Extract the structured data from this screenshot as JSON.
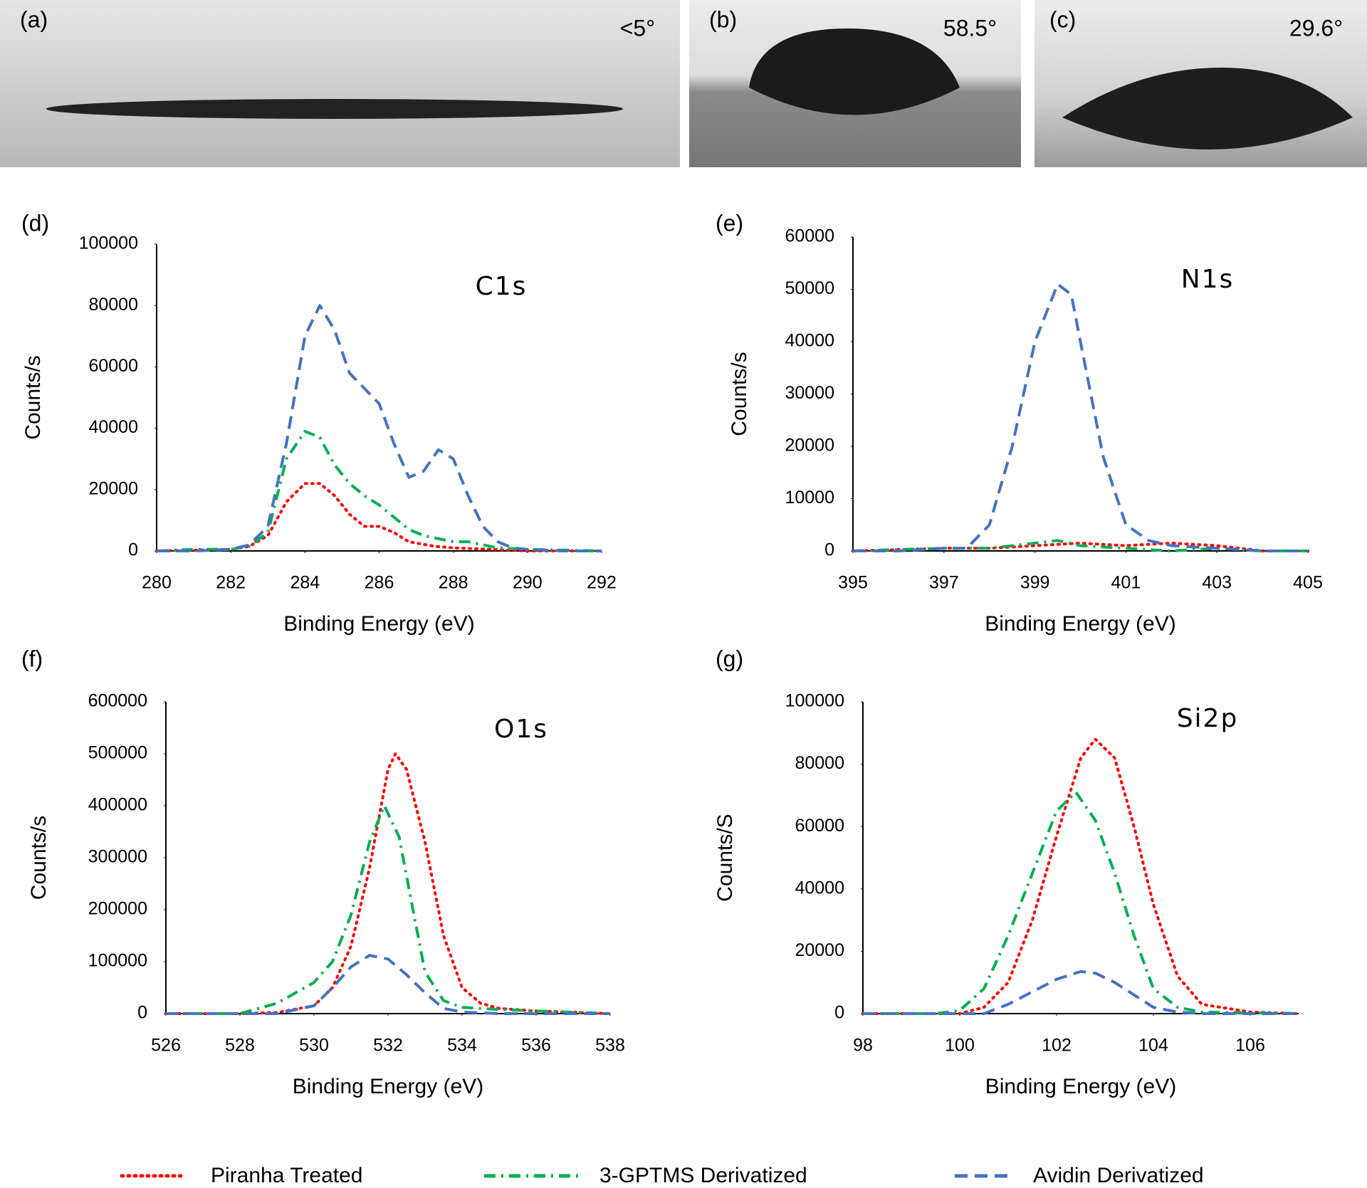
{
  "photos": [
    {
      "label": "(a)",
      "angle": "<5°"
    },
    {
      "label": "(b)",
      "angle": "58.5°"
    },
    {
      "label": "(c)",
      "angle": "29.6°"
    }
  ],
  "chart_data": [
    {
      "type": "line",
      "panel": "(d)",
      "annotation": "C1s",
      "x_label": "Binding Energy (eV)",
      "y_label": "Counts/s",
      "xlim": [
        280,
        292
      ],
      "xticks": [
        280,
        282,
        284,
        286,
        288,
        290,
        292
      ],
      "ylim": [
        0,
        100000
      ],
      "yticks": [
        0,
        20000,
        40000,
        60000,
        80000,
        100000
      ],
      "series": [
        {
          "name": "Piranha Treated",
          "color": "#ff0000",
          "style": "dotted",
          "x": [
            280,
            282,
            282.5,
            283,
            283.5,
            284,
            284.4,
            284.8,
            285.2,
            285.6,
            286,
            286.4,
            286.8,
            287.5,
            288,
            289,
            290,
            292
          ],
          "values": [
            0,
            500,
            1500,
            5000,
            16000,
            22000,
            22000,
            18000,
            12000,
            8000,
            8000,
            6000,
            3000,
            1500,
            1000,
            500,
            0,
            0
          ]
        },
        {
          "name": "3-GPTMS Derivatized",
          "color": "#00b050",
          "style": "dashdot",
          "x": [
            280,
            281,
            282,
            282.5,
            283,
            283.5,
            284,
            284.4,
            284.8,
            285.2,
            285.6,
            286,
            286.4,
            286.8,
            287.2,
            287.6,
            288,
            288.4,
            288.8,
            289.2,
            290,
            292
          ],
          "values": [
            0,
            500,
            500,
            1500,
            6000,
            30000,
            39000,
            37000,
            28000,
            22000,
            18000,
            15000,
            11000,
            7000,
            5000,
            4000,
            3000,
            3000,
            2000,
            1000,
            500,
            0
          ]
        },
        {
          "name": "Avidin Derivatized",
          "color": "#4472c4",
          "style": "dashed",
          "x": [
            280,
            281,
            282,
            282.5,
            283,
            283.5,
            284,
            284.4,
            284.8,
            285.2,
            285.6,
            286,
            286.4,
            286.8,
            287.2,
            287.6,
            288,
            288.4,
            288.8,
            289.2,
            289.6,
            290,
            291,
            292
          ],
          "values": [
            0,
            0,
            500,
            2000,
            8000,
            35000,
            70000,
            80000,
            72000,
            58000,
            53000,
            48000,
            35000,
            24000,
            26000,
            33000,
            30000,
            18000,
            8000,
            3000,
            1000,
            500,
            0,
            0
          ]
        }
      ]
    },
    {
      "type": "line",
      "panel": "(e)",
      "annotation": "N1s",
      "x_label": "Binding Energy (eV)",
      "y_label": "Counts/s",
      "xlim": [
        395,
        405
      ],
      "xticks": [
        395,
        397,
        399,
        401,
        403,
        405
      ],
      "ylim": [
        0,
        60000
      ],
      "yticks": [
        0,
        10000,
        20000,
        30000,
        40000,
        50000,
        60000
      ],
      "series": [
        {
          "name": "Piranha Treated",
          "color": "#ff0000",
          "style": "dotted",
          "x": [
            395,
            397,
            398,
            399,
            400,
            401,
            402,
            403,
            404,
            405
          ],
          "values": [
            0,
            500,
            500,
            1000,
            1500,
            1000,
            1500,
            1000,
            0,
            0
          ]
        },
        {
          "name": "3-GPTMS Derivatized",
          "color": "#00b050",
          "style": "dashdot",
          "x": [
            395,
            397,
            398,
            399,
            399.5,
            400,
            401,
            402,
            403,
            404,
            405
          ],
          "values": [
            0,
            500,
            500,
            1500,
            2000,
            1000,
            500,
            0,
            500,
            0,
            0
          ]
        },
        {
          "name": "Avidin Derivatized",
          "color": "#4472c4",
          "style": "dashed",
          "x": [
            395,
            396,
            397,
            397.5,
            398,
            398.5,
            399,
            399.5,
            399.8,
            400,
            400.5,
            401,
            401.5,
            402,
            403,
            404,
            405
          ],
          "values": [
            0,
            0,
            500,
            500,
            5000,
            20000,
            40000,
            51000,
            49000,
            40000,
            18000,
            5000,
            2000,
            1000,
            500,
            0,
            0
          ]
        }
      ]
    },
    {
      "type": "line",
      "panel": "(f)",
      "annotation": "O1s",
      "x_label": "Binding Energy (eV)",
      "y_label": "Counts/s",
      "xlim": [
        526,
        538
      ],
      "xticks": [
        526,
        528,
        530,
        532,
        534,
        536,
        538
      ],
      "ylim": [
        0,
        600000
      ],
      "yticks": [
        0,
        100000,
        200000,
        300000,
        400000,
        500000,
        600000
      ],
      "series": [
        {
          "name": "Piranha Treated",
          "color": "#ff0000",
          "style": "dotted",
          "x": [
            526,
            528,
            529,
            530,
            530.5,
            531,
            531.5,
            532,
            532.2,
            532.5,
            533,
            533.5,
            534,
            534.5,
            535,
            536,
            538
          ],
          "values": [
            0,
            0,
            2000,
            15000,
            50000,
            130000,
            280000,
            470000,
            500000,
            470000,
            330000,
            150000,
            50000,
            20000,
            10000,
            5000,
            0
          ]
        },
        {
          "name": "3-GPTMS Derivatized",
          "color": "#00b050",
          "style": "dashdot",
          "x": [
            526,
            528,
            529,
            530,
            530.5,
            531,
            531.5,
            531.9,
            532.3,
            532.7,
            533,
            533.5,
            534,
            535,
            536,
            538
          ],
          "values": [
            0,
            0,
            20000,
            60000,
            100000,
            190000,
            330000,
            400000,
            340000,
            190000,
            80000,
            25000,
            12000,
            8000,
            5000,
            0
          ]
        },
        {
          "name": "Avidin Derivatized",
          "color": "#4472c4",
          "style": "dashed",
          "x": [
            526,
            529,
            530,
            530.5,
            531,
            531.5,
            532,
            532.5,
            533,
            533.5,
            534,
            535,
            538
          ],
          "values": [
            0,
            0,
            15000,
            50000,
            90000,
            112000,
            105000,
            75000,
            40000,
            10000,
            3000,
            0,
            0
          ]
        }
      ]
    },
    {
      "type": "line",
      "panel": "(g)",
      "annotation": "Si2p",
      "x_label": "Binding Energy (eV)",
      "y_label": "Counts/S",
      "xlim": [
        98,
        107
      ],
      "xticks": [
        98,
        100,
        102,
        104,
        106
      ],
      "ylim": [
        0,
        100000
      ],
      "yticks": [
        0,
        20000,
        40000,
        60000,
        80000,
        100000
      ],
      "series": [
        {
          "name": "Piranha Treated",
          "color": "#ff0000",
          "style": "dotted",
          "x": [
            98,
            100,
            100.5,
            101,
            101.5,
            102,
            102.5,
            102.8,
            103.2,
            103.6,
            104,
            104.5,
            105,
            106,
            107
          ],
          "values": [
            0,
            0,
            2000,
            10000,
            30000,
            57000,
            82000,
            88000,
            82000,
            60000,
            35000,
            12000,
            3000,
            500,
            0
          ]
        },
        {
          "name": "3-GPTMS Derivatized",
          "color": "#00b050",
          "style": "dashdot",
          "x": [
            98,
            99.5,
            100,
            100.5,
            101,
            101.5,
            102,
            102.4,
            102.8,
            103.2,
            103.6,
            104,
            104.5,
            105,
            107
          ],
          "values": [
            0,
            0,
            1000,
            8000,
            25000,
            45000,
            65000,
            71000,
            62000,
            45000,
            25000,
            8000,
            2000,
            500,
            0
          ]
        },
        {
          "name": "Avidin Derivatized",
          "color": "#4472c4",
          "style": "dashed",
          "x": [
            98,
            100.5,
            101,
            101.5,
            102,
            102.5,
            102.8,
            103.2,
            103.6,
            104,
            104.5,
            105,
            107
          ],
          "values": [
            0,
            0,
            3000,
            7000,
            11000,
            13500,
            13000,
            10000,
            6000,
            2000,
            500,
            0,
            0
          ]
        }
      ]
    }
  ]
}
